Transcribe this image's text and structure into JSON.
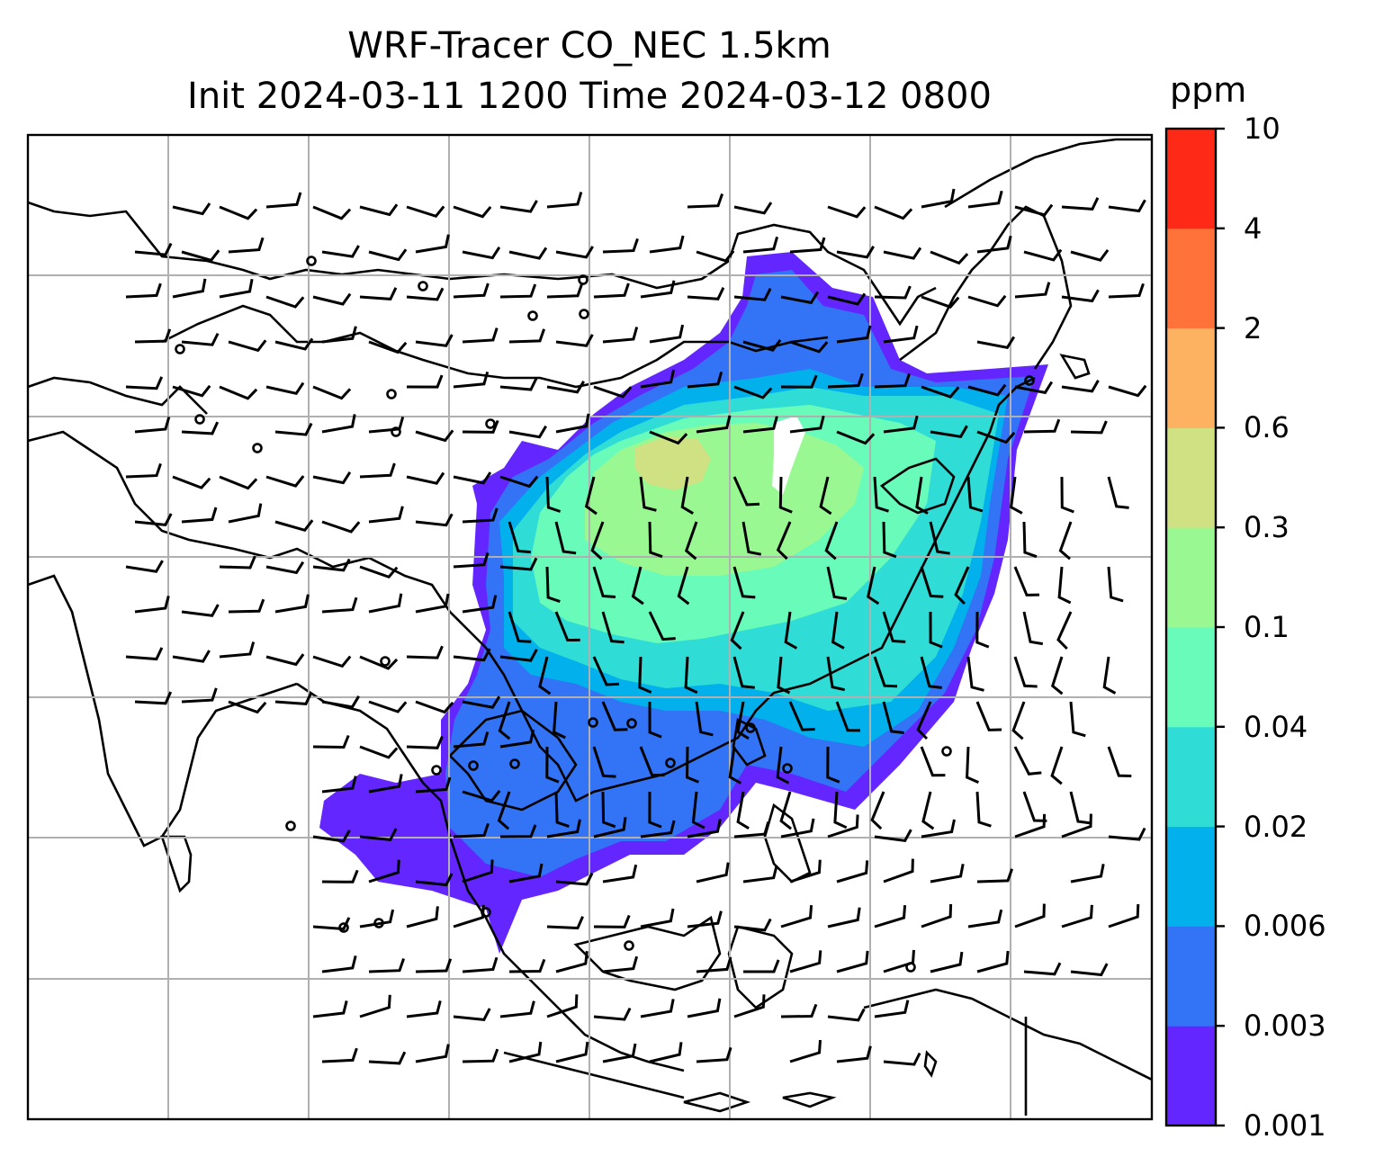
{
  "title": {
    "line1": "WRF-Tracer CO_NEC 1.5km",
    "line2": "Init 2024-03-11 1200 Time 2024-03-12 0800"
  },
  "colorbar": {
    "unit": "ppm",
    "levels": [
      "0.001",
      "0.003",
      "0.006",
      "0.02",
      "0.04",
      "0.1",
      "0.3",
      "0.6",
      "2",
      "4",
      "10"
    ],
    "colors": [
      "#6426ff",
      "#3373f5",
      "#02b1ec",
      "#2fdcd6",
      "#69fbb9",
      "#99f891",
      "#d0e184",
      "#fdb262",
      "#ff733b",
      "#fe2a17"
    ]
  },
  "map": {
    "projection": "regional lat-lon",
    "gridlines": true,
    "grid_color": "#b0b0b0",
    "coastline_color": "#000000",
    "wind_barbs": true,
    "calm_markers": true,
    "field": "CO tracer concentration"
  }
}
